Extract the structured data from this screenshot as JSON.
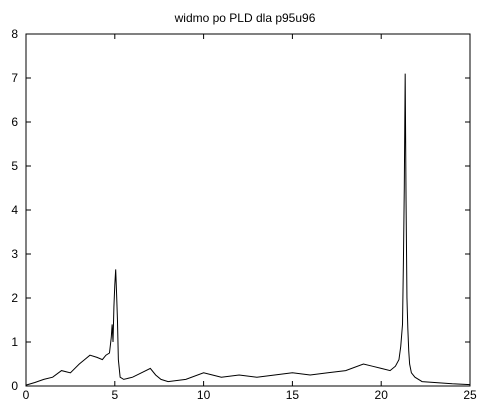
{
  "chart_data": {
    "type": "line",
    "title": "widmo po PLD dla p95u96",
    "xlabel": "",
    "ylabel": "",
    "xlim": [
      0,
      25
    ],
    "ylim": [
      0,
      8
    ],
    "xticks": [
      0,
      5,
      10,
      15,
      20,
      25
    ],
    "yticks": [
      0,
      1,
      2,
      3,
      4,
      5,
      6,
      7,
      8
    ],
    "grid": false,
    "legend": "none",
    "line_color": "#000000",
    "series": [
      {
        "values_description": "",
        "x": [
          0,
          0.5,
          1.0,
          1.5,
          2.0,
          2.5,
          3.0,
          3.3,
          3.6,
          4.0,
          4.3,
          4.5,
          4.7,
          4.8,
          4.85,
          4.9,
          4.95,
          5.0,
          5.05,
          5.1,
          5.15,
          5.2,
          5.3,
          5.5,
          6.0,
          6.5,
          7.0,
          7.3,
          7.6,
          8.0,
          9.0,
          10.0,
          10.5,
          11.0,
          12.0,
          13.0,
          14.0,
          15.0,
          16.0,
          17.0,
          18.0,
          19.0,
          19.5,
          20.0,
          20.5,
          20.8,
          21.0,
          21.1,
          21.2,
          21.25,
          21.3,
          21.35,
          21.4,
          21.45,
          21.5,
          21.55,
          21.6,
          21.7,
          21.9,
          22.3,
          23.0,
          24.0,
          25.0
        ],
        "y": [
          0.02,
          0.08,
          0.15,
          0.2,
          0.35,
          0.3,
          0.5,
          0.6,
          0.7,
          0.65,
          0.6,
          0.7,
          0.75,
          1.1,
          1.4,
          1.0,
          1.8,
          2.3,
          2.65,
          2.1,
          1.5,
          0.6,
          0.2,
          0.15,
          0.2,
          0.3,
          0.4,
          0.25,
          0.15,
          0.1,
          0.15,
          0.3,
          0.25,
          0.2,
          0.25,
          0.2,
          0.25,
          0.3,
          0.25,
          0.3,
          0.35,
          0.5,
          0.45,
          0.4,
          0.35,
          0.45,
          0.6,
          0.9,
          1.4,
          2.8,
          4.5,
          7.1,
          4.2,
          2.0,
          1.3,
          0.8,
          0.5,
          0.3,
          0.2,
          0.1,
          0.08,
          0.05,
          0.03
        ]
      }
    ]
  }
}
